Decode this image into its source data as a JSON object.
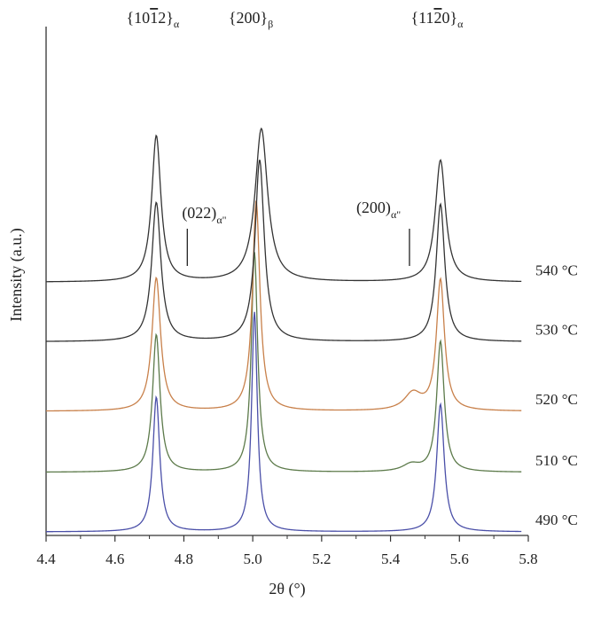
{
  "chart_data": {
    "type": "line",
    "title": "",
    "xlabel": "2θ (°)",
    "ylabel": "Intensity (a.u.)",
    "xlim": [
      4.4,
      5.8
    ],
    "xticks": [
      "4.4",
      "4.6",
      "4.8",
      "5.0",
      "5.2",
      "5.4",
      "5.6",
      "5.8"
    ],
    "yticks_shown": false,
    "grid": false,
    "series": [
      {
        "name": "490 °C",
        "label_main": "490 °C",
        "color": "#4a4fa8",
        "baseline": 0.0,
        "peaks": [
          {
            "x": 4.72,
            "height": 0.95,
            "width": 0.012
          },
          {
            "x": 5.005,
            "height": 1.55,
            "width": 0.01
          },
          {
            "x": 5.545,
            "height": 0.9,
            "width": 0.013
          }
        ]
      },
      {
        "name": "510 °C",
        "label_main": "510 °C",
        "color": "#5c7a4a",
        "baseline": 0.42,
        "peaks": [
          {
            "x": 4.72,
            "height": 0.97,
            "width": 0.013
          },
          {
            "x": 5.005,
            "height": 1.55,
            "width": 0.011
          },
          {
            "x": 5.545,
            "height": 0.92,
            "width": 0.013
          },
          {
            "x": 5.46,
            "height": 0.05,
            "width": 0.03
          }
        ]
      },
      {
        "name": "520 °C",
        "label_main": "520 °C",
        "color": "#c8804a",
        "baseline": 0.85,
        "peaks": [
          {
            "x": 4.72,
            "height": 0.94,
            "width": 0.015
          },
          {
            "x": 5.01,
            "height": 1.48,
            "width": 0.013
          },
          {
            "x": 5.545,
            "height": 0.92,
            "width": 0.014
          },
          {
            "x": 5.465,
            "height": 0.12,
            "width": 0.03
          }
        ]
      },
      {
        "name": "530 °C",
        "label_main": "530 °C",
        "color": "#333333",
        "baseline": 1.34,
        "peaks": [
          {
            "x": 4.72,
            "height": 0.98,
            "width": 0.016
          },
          {
            "x": 5.02,
            "height": 1.28,
            "width": 0.016
          },
          {
            "x": 5.545,
            "height": 0.97,
            "width": 0.015
          }
        ]
      },
      {
        "name": "540 °C",
        "label_main": "540 °C",
        "color": "#333333",
        "baseline": 1.76,
        "peaks": [
          {
            "x": 4.72,
            "height": 1.03,
            "width": 0.016
          },
          {
            "x": 5.025,
            "height": 1.08,
            "width": 0.022
          },
          {
            "x": 5.545,
            "height": 0.86,
            "width": 0.018
          }
        ]
      }
    ],
    "annotations": [
      {
        "main": "{10",
        "overline": "1",
        "rest": "2}",
        "sub": "α",
        "x": 4.72,
        "kind": "top"
      },
      {
        "main": "{200}",
        "sub": "β",
        "x": 5.005,
        "kind": "top"
      },
      {
        "main": "{11",
        "overline": "2",
        "rest": "0}",
        "sub": "α",
        "x": 5.545,
        "kind": "top"
      },
      {
        "main": "(022)",
        "sub": "α\"",
        "x": 4.81,
        "kind": "marker"
      },
      {
        "main": "(200)",
        "sub": "α\"",
        "x": 5.455,
        "kind": "marker"
      }
    ]
  }
}
